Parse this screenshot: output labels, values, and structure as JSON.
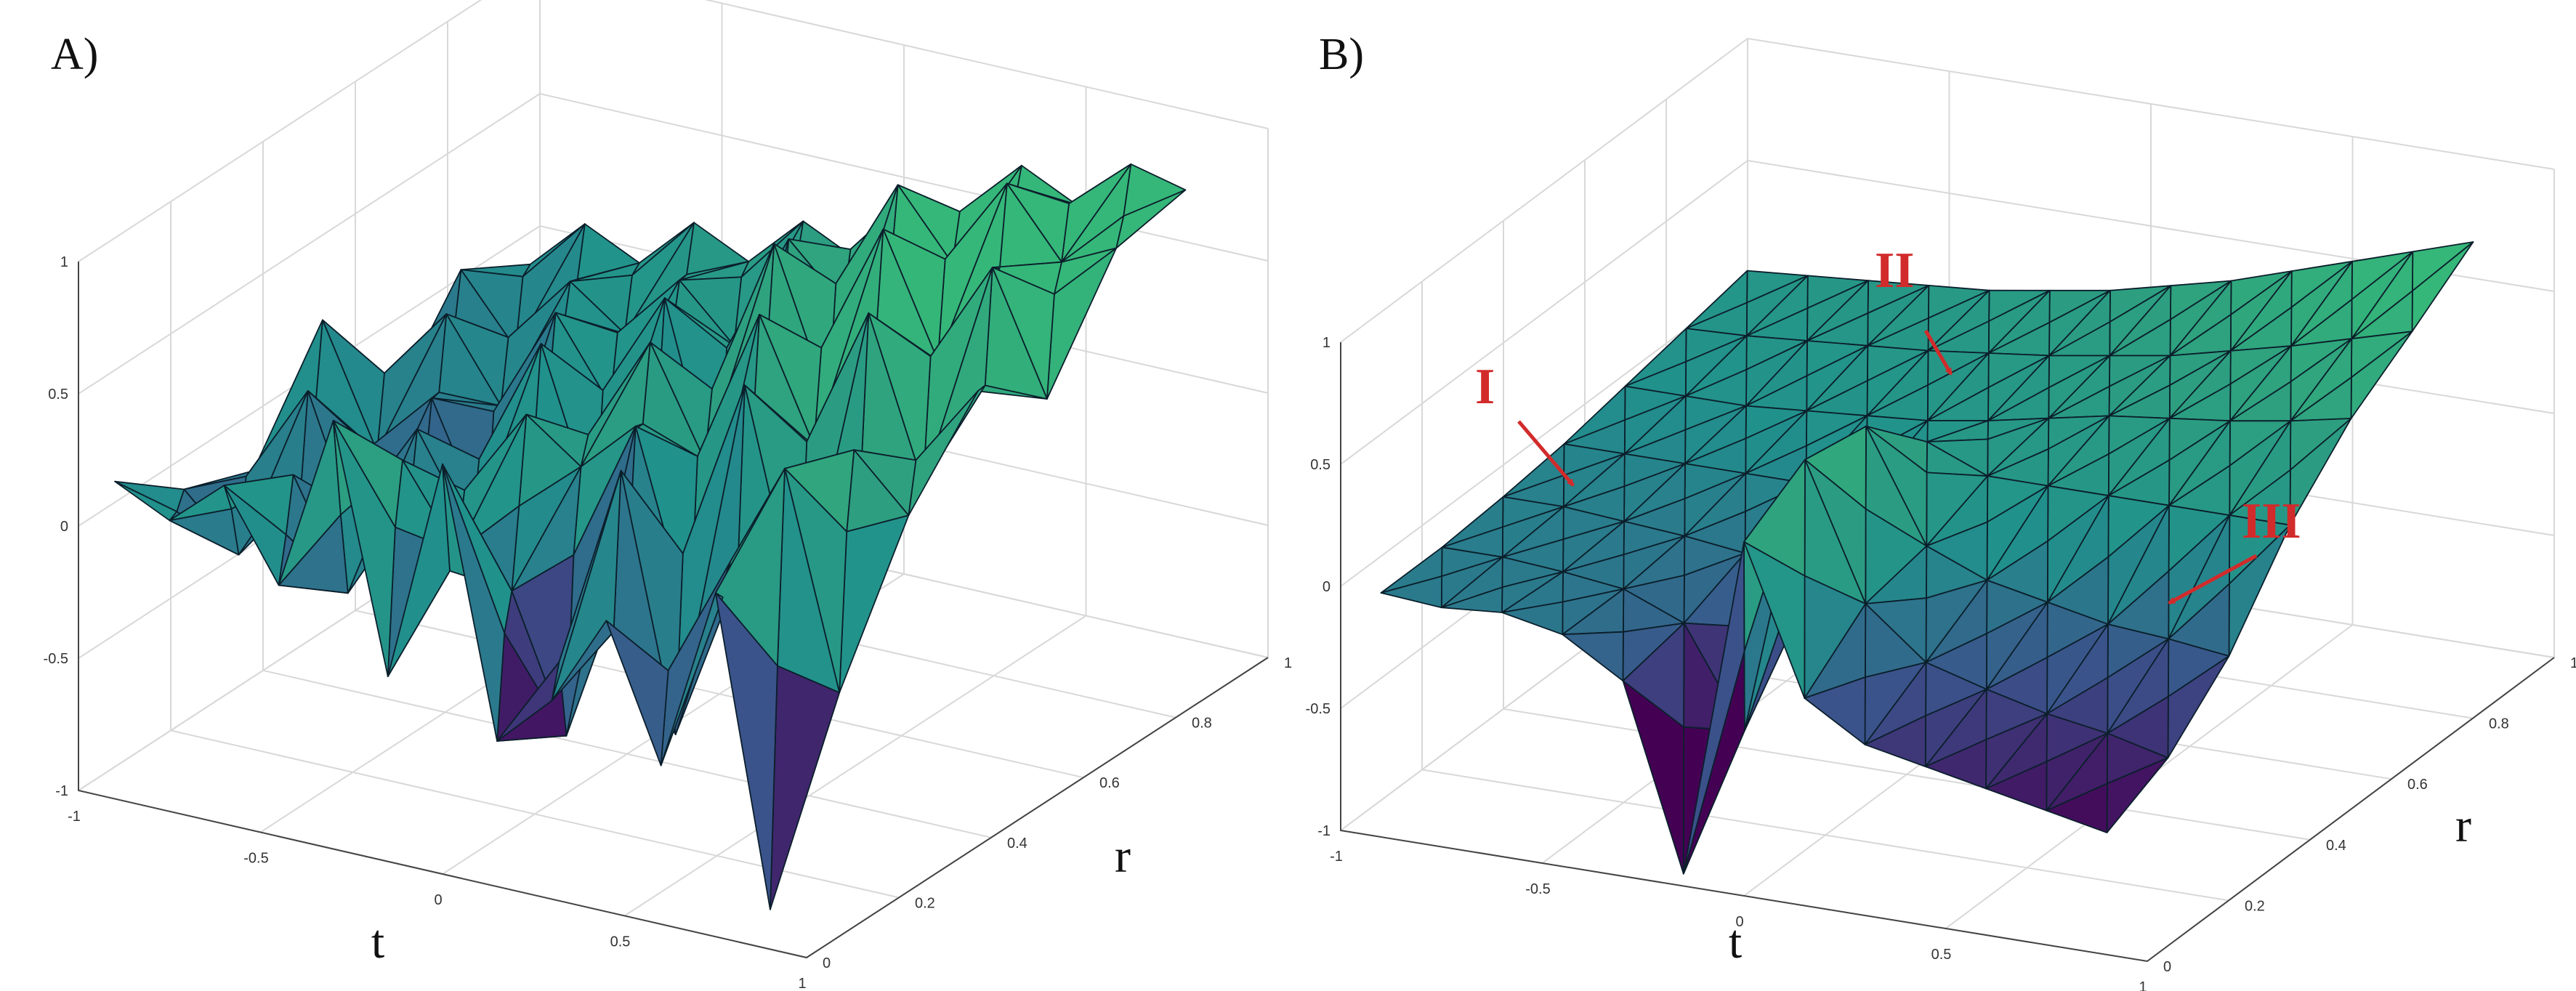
{
  "chart_data": [
    {
      "type": "surface",
      "panel_label": "A)",
      "xlabel": "t",
      "ylabel": "r",
      "xlim": [
        -1,
        1
      ],
      "ylim": [
        0,
        1
      ],
      "zlim": [
        -1,
        1
      ],
      "x_ticks": [
        "-1",
        "-0.5",
        "0",
        "0.5",
        "1"
      ],
      "y_ticks": [
        "0",
        "0.2",
        "0.4",
        "0.6",
        "0.8",
        "1"
      ],
      "z_ticks": [
        "1",
        "0.5",
        "0",
        "-0.5",
        "-1"
      ],
      "grid": true,
      "colormap": [
        "#440154",
        "#3b528b",
        "#21918c",
        "#2ea07f",
        "#35b779"
      ],
      "surface": {
        "t": [
          -0.9,
          -0.75,
          -0.6,
          -0.45,
          -0.3,
          -0.15,
          0.0,
          0.15,
          0.3,
          0.45,
          0.6,
          0.75,
          0.9
        ],
        "r": [
          0.0,
          0.15,
          0.3,
          0.45,
          0.6,
          0.75,
          0.9
        ],
        "z": [
          [
            0.2,
            0.1,
            0.28,
            -0.05,
            0.62,
            -0.3,
            0.55,
            -0.45,
            -0.25,
            0.1,
            -0.4,
            0.3,
            -0.85
          ],
          [
            0.0,
            -0.2,
            0.15,
            -0.25,
            0.3,
            0.0,
            -0.1,
            -0.6,
            0.45,
            -0.5,
            0.2,
            0.6,
            -0.2
          ],
          [
            -0.1,
            0.25,
            -0.3,
            0.2,
            -0.15,
            0.35,
            0.2,
            0.4,
            -0.3,
            0.65,
            -0.2,
            0.5,
            0.3
          ],
          [
            0.3,
            -0.15,
            0.1,
            -0.35,
            0.4,
            -0.2,
            0.5,
            0.1,
            0.7,
            0.25,
            0.8,
            0.2,
            0.6
          ],
          [
            -0.2,
            0.2,
            -0.1,
            0.3,
            0.0,
            0.45,
            -0.3,
            0.75,
            0.2,
            0.9,
            0.45,
            0.85,
            0.4
          ],
          [
            0.15,
            -0.1,
            0.2,
            0.05,
            0.3,
            0.1,
            0.55,
            0.35,
            0.85,
            0.6,
            0.95,
            0.7,
            0.8
          ],
          [
            0.0,
            0.2,
            0.1,
            0.3,
            0.2,
            0.4,
            0.3,
            0.6,
            0.5,
            0.8,
            0.7,
            0.9,
            0.85
          ]
        ]
      }
    },
    {
      "type": "surface",
      "panel_label": "B)",
      "xlabel": "t",
      "ylabel": "r",
      "xlim": [
        -1,
        1
      ],
      "ylim": [
        0,
        1
      ],
      "zlim": [
        -1,
        1
      ],
      "x_ticks": [
        "-1",
        "-0.5",
        "0",
        "0.5",
        "1"
      ],
      "y_ticks": [
        "0",
        "0.2",
        "0.4",
        "0.6",
        "0.8",
        "1"
      ],
      "z_ticks": [
        "1",
        "0.5",
        "0",
        "-0.5",
        "-1"
      ],
      "grid": true,
      "colormap": [
        "#440154",
        "#3b528b",
        "#21918c",
        "#2ea07f",
        "#35b779"
      ],
      "surface": {
        "t": [
          -0.9,
          -0.75,
          -0.6,
          -0.45,
          -0.3,
          -0.15,
          0.0,
          0.15,
          0.3,
          0.45,
          0.6,
          0.75,
          0.9
        ],
        "r": [
          0.0,
          0.15,
          0.3,
          0.45,
          0.6,
          0.75,
          0.9
        ],
        "z": [
          [
            0.0,
            -0.02,
            0.0,
            -0.05,
            -0.2,
            -0.95,
            0.45,
            -0.15,
            -0.3,
            -0.35,
            -0.4,
            -0.45,
            -0.5
          ],
          [
            0.0,
            0.0,
            -0.02,
            -0.05,
            -0.15,
            -0.55,
            0.6,
            0.05,
            -0.15,
            -0.22,
            -0.28,
            -0.32,
            -0.38
          ],
          [
            0.02,
            0.02,
            0.0,
            -0.02,
            -0.05,
            -0.2,
            0.55,
            0.1,
            0.0,
            -0.05,
            -0.1,
            -0.12,
            -0.15
          ],
          [
            0.05,
            0.05,
            0.05,
            0.05,
            0.05,
            0.05,
            0.3,
            0.2,
            0.2,
            0.2,
            0.2,
            0.2,
            0.2
          ],
          [
            0.1,
            0.1,
            0.1,
            0.12,
            0.14,
            0.16,
            0.2,
            0.25,
            0.3,
            0.33,
            0.36,
            0.4,
            0.45
          ],
          [
            0.15,
            0.16,
            0.18,
            0.2,
            0.22,
            0.25,
            0.28,
            0.32,
            0.36,
            0.42,
            0.48,
            0.55,
            0.62
          ],
          [
            0.2,
            0.22,
            0.24,
            0.26,
            0.28,
            0.32,
            0.36,
            0.42,
            0.48,
            0.56,
            0.64,
            0.72,
            0.8
          ]
        ]
      },
      "annotations": [
        {
          "text": "I",
          "color": "#d22b2b"
        },
        {
          "text": "II",
          "color": "#d22b2b"
        },
        {
          "text": "III",
          "color": "#d22b2b"
        }
      ]
    }
  ]
}
